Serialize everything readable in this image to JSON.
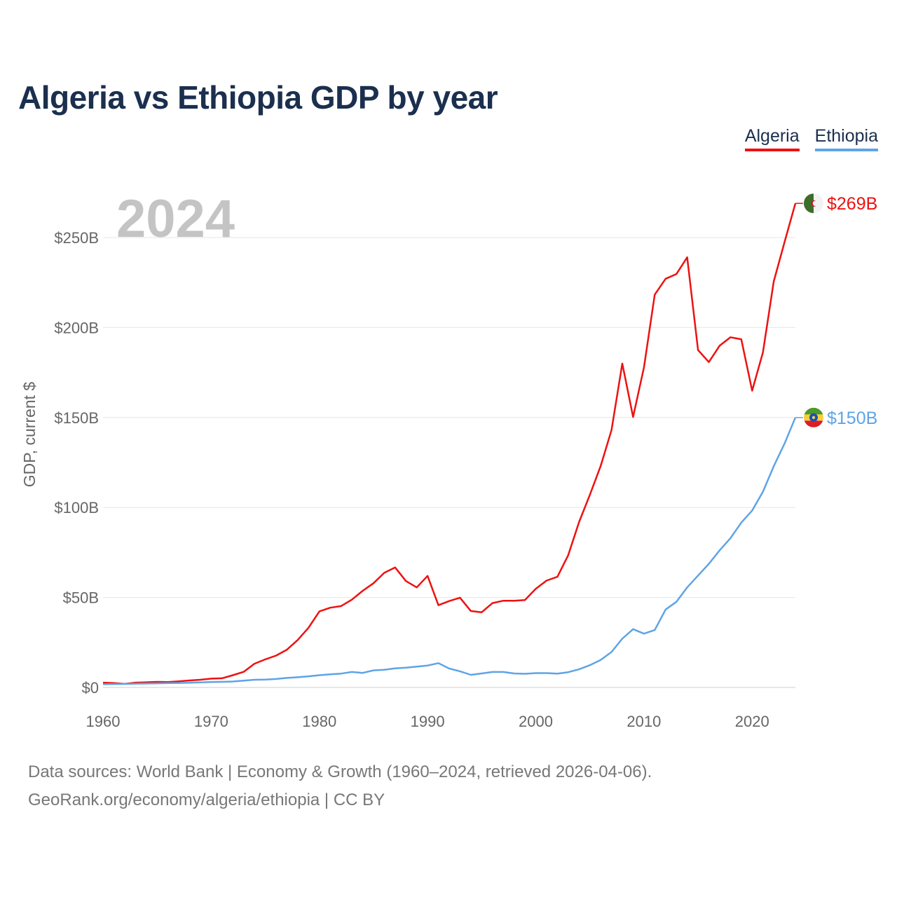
{
  "title": "Algeria vs Ethiopia GDP by year",
  "legend": [
    {
      "label": "Algeria",
      "color": "#ee1111"
    },
    {
      "label": "Ethiopia",
      "color": "#5fa4e6"
    }
  ],
  "source": {
    "line1": "Data sources: World Bank | Economy & Growth (1960–2024, retrieved 2026-04-06).",
    "line2": "GeoRank.org/economy/algeria/ethiopia | CC BY"
  },
  "chart_data": {
    "type": "line",
    "title": "Algeria vs Ethiopia GDP by year",
    "year_label": "2024",
    "xlabel": "",
    "ylabel": "GDP, current $",
    "xlim": [
      1960,
      2024
    ],
    "ylim": [
      0,
      260
    ],
    "y_unit": "billion US$",
    "x_ticks": [
      1960,
      1970,
      1980,
      1990,
      2000,
      2010,
      2020
    ],
    "y_ticks": [
      {
        "value": 0,
        "label": "$0"
      },
      {
        "value": 50,
        "label": "$50B"
      },
      {
        "value": 100,
        "label": "$100B"
      },
      {
        "value": 150,
        "label": "$150B"
      },
      {
        "value": 200,
        "label": "$200B"
      },
      {
        "value": 250,
        "label": "$250B"
      }
    ],
    "grid": true,
    "x": [
      1960,
      1961,
      1962,
      1963,
      1964,
      1965,
      1966,
      1967,
      1968,
      1969,
      1970,
      1971,
      1972,
      1973,
      1974,
      1975,
      1976,
      1977,
      1978,
      1979,
      1980,
      1981,
      1982,
      1983,
      1984,
      1985,
      1986,
      1987,
      1988,
      1989,
      1990,
      1991,
      1992,
      1993,
      1994,
      1995,
      1996,
      1997,
      1998,
      1999,
      2000,
      2001,
      2002,
      2003,
      2004,
      2005,
      2006,
      2007,
      2008,
      2009,
      2010,
      2011,
      2012,
      2013,
      2014,
      2015,
      2016,
      2017,
      2018,
      2019,
      2020,
      2021,
      2022,
      2023,
      2024
    ],
    "series": [
      {
        "name": "Algeria",
        "color": "#ee1111",
        "end_label": "$269B",
        "values": [
          2.7,
          2.4,
          2.0,
          2.7,
          2.9,
          3.1,
          3.0,
          3.4,
          3.9,
          4.3,
          4.9,
          5.1,
          6.8,
          8.7,
          13.2,
          15.6,
          17.7,
          21.0,
          26.4,
          33.2,
          42.3,
          44.3,
          45.2,
          48.8,
          53.7,
          57.9,
          63.7,
          66.7,
          59.1,
          55.6,
          62.0,
          45.7,
          48.0,
          49.9,
          42.5,
          41.8,
          46.9,
          48.2,
          48.2,
          48.6,
          54.8,
          59.4,
          61.5,
          73.5,
          91.9,
          107.0,
          123.0,
          143.0,
          180.0,
          150.3,
          177.8,
          218.3,
          227.1,
          229.7,
          239.0,
          187.5,
          180.8,
          189.9,
          194.6,
          193.5,
          164.9,
          186.2,
          225.6,
          247.6,
          269.0
        ]
      },
      {
        "name": "Ethiopia",
        "color": "#5fa4e6",
        "end_label": "$150B",
        "values": [
          1.8,
          1.9,
          2.0,
          2.1,
          2.2,
          2.3,
          2.4,
          2.5,
          2.6,
          2.8,
          3.0,
          3.1,
          3.3,
          3.8,
          4.3,
          4.4,
          4.7,
          5.3,
          5.7,
          6.2,
          6.8,
          7.3,
          7.7,
          8.6,
          8.1,
          9.5,
          9.8,
          10.6,
          11.0,
          11.6,
          12.2,
          13.5,
          10.5,
          9.0,
          7.0,
          7.8,
          8.6,
          8.6,
          7.8,
          7.6,
          8.0,
          8.0,
          7.7,
          8.5,
          10.1,
          12.4,
          15.3,
          19.7,
          27.1,
          32.4,
          29.9,
          31.9,
          43.3,
          47.6,
          55.6,
          62.2,
          68.7,
          76.2,
          83.0,
          91.6,
          98.3,
          108.8,
          122.9,
          135.6,
          150.0
        ]
      }
    ]
  }
}
